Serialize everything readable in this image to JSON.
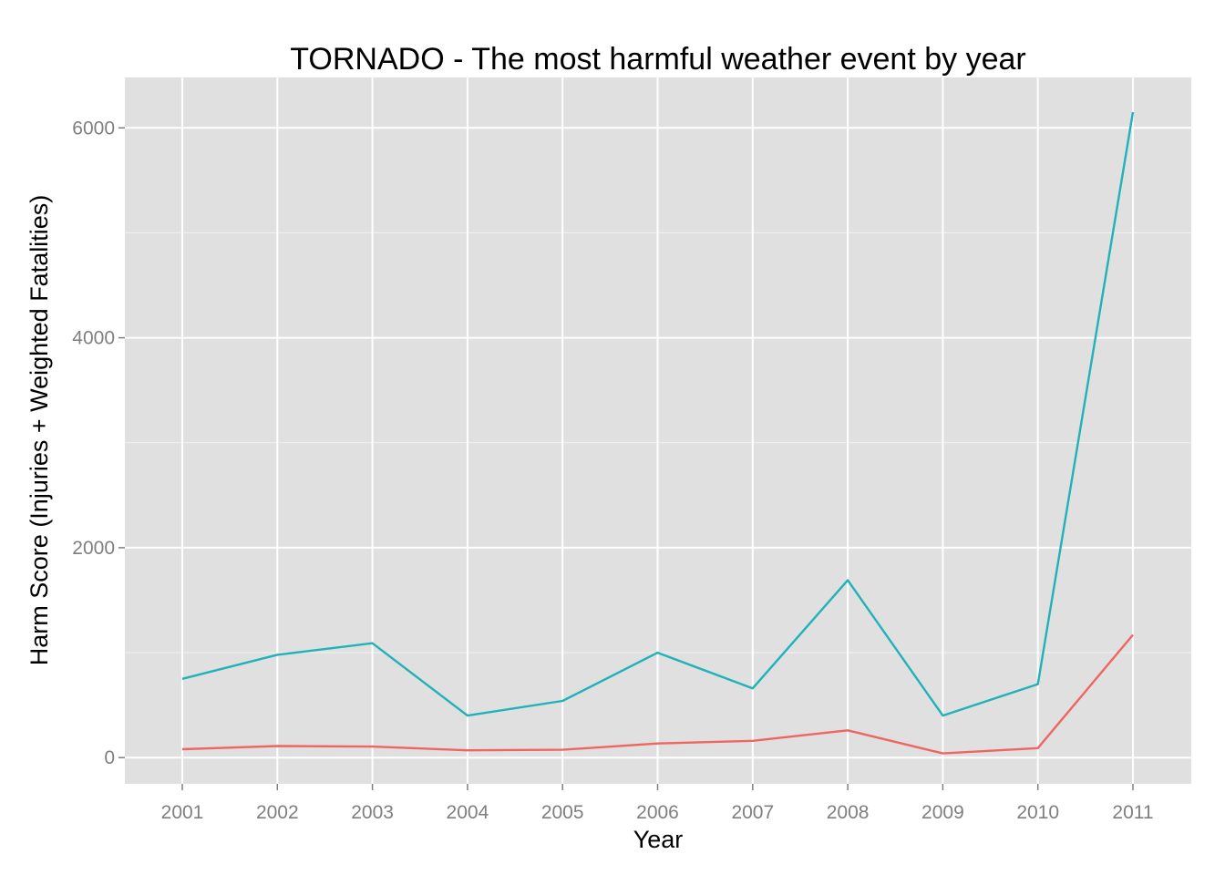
{
  "chart_data": {
    "type": "line",
    "title": "TORNADO - The most harmful weather event by year",
    "xlabel": "Year",
    "ylabel": "Harm Score (Injuries + Weighted Fatalities)",
    "categories": [
      "2001",
      "2002",
      "2003",
      "2004",
      "2005",
      "2006",
      "2007",
      "2008",
      "2009",
      "2010",
      "2011"
    ],
    "ylim": [
      -250,
      6480
    ],
    "yticks": [
      0,
      2000,
      4000,
      6000
    ],
    "yticks_minor": [
      1000,
      3000,
      5000
    ],
    "grid": true,
    "legend": "none",
    "background": "#e0e0e0",
    "series": [
      {
        "color": "#1fb2b8",
        "values": [
          750,
          980,
          1090,
          400,
          540,
          1000,
          660,
          1690,
          400,
          700,
          6150
        ]
      },
      {
        "color": "#ef6660",
        "values": [
          80,
          110,
          105,
          70,
          75,
          135,
          160,
          260,
          40,
          90,
          1170
        ]
      }
    ]
  }
}
